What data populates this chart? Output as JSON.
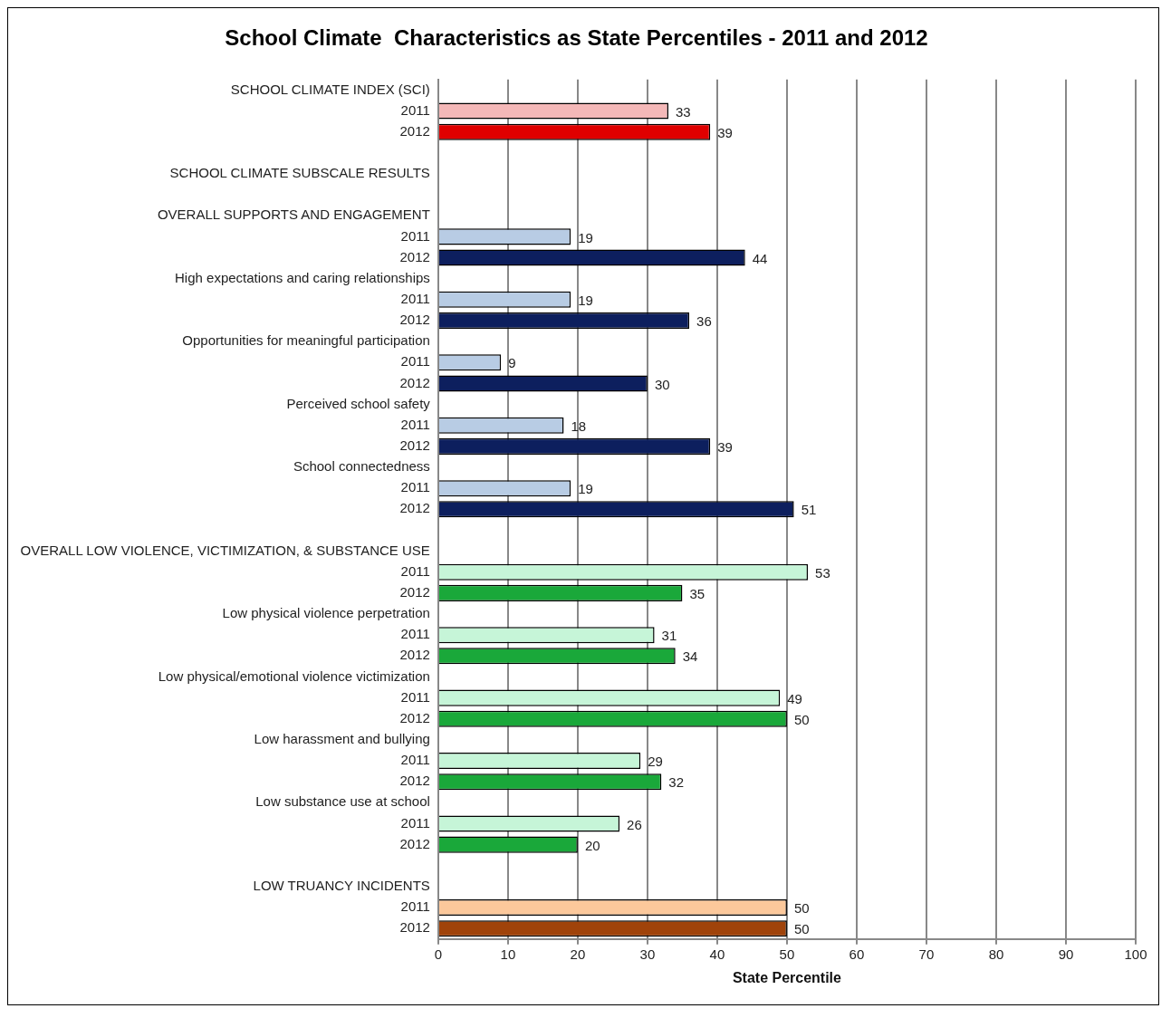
{
  "chart_data": {
    "type": "bar",
    "orientation": "horizontal",
    "title": "School Climate  Characteristics as State Percentiles - 2011 and 2012",
    "xlabel": "State Percentile",
    "categories": [
      "SCHOOL CLIMATE INDEX (SCI)",
      "2011",
      "2012",
      null,
      "SCHOOL CLIMATE SUBSCALE RESULTS",
      null,
      "OVERALL SUPPORTS AND ENGAGEMENT",
      "2011",
      "2012",
      "High expectations and caring relationships",
      "2011",
      "2012",
      "Opportunities for meaningful participation",
      "2011",
      "2012",
      "Perceived school safety",
      "2011",
      "2012",
      "School connectedness",
      "2011",
      "2012",
      null,
      "OVERALL LOW VIOLENCE, VICTIMIZATION, & SUBSTANCE USE",
      "2011",
      "2012",
      "Low physical violence perpetration",
      "2011",
      "2012",
      "Low physical/emotional violence victimization",
      "2011",
      "2012",
      "Low harassment and bullying",
      "2011",
      "2012",
      "Low substance use at school",
      "2011",
      "2012",
      null,
      "LOW TRUANCY INCIDENTS",
      "2011",
      "2012"
    ],
    "values": [
      null,
      33,
      39,
      null,
      null,
      null,
      null,
      19,
      44,
      null,
      19,
      36,
      null,
      9,
      30,
      null,
      18,
      39,
      null,
      19,
      51,
      null,
      null,
      53,
      35,
      null,
      31,
      34,
      null,
      49,
      50,
      null,
      29,
      32,
      null,
      26,
      20,
      null,
      null,
      50,
      50
    ],
    "colors": [
      null,
      "#f4b8b8",
      "#e00000",
      null,
      null,
      null,
      null,
      "#b8cce4",
      "#0d1f5e",
      null,
      "#b8cce4",
      "#0d1f5e",
      null,
      "#b8cce4",
      "#0d1f5e",
      null,
      "#b8cce4",
      "#0d1f5e",
      null,
      "#b8cce4",
      "#0d1f5e",
      null,
      null,
      "#c6f5d8",
      "#1aa83a",
      null,
      "#c6f5d8",
      "#1aa83a",
      null,
      "#c6f5d8",
      "#1aa83a",
      null,
      "#c6f5d8",
      "#1aa83a",
      null,
      "#c6f5d8",
      "#1aa83a",
      null,
      null,
      "#fcc89b",
      "#a0430a"
    ],
    "xlim": [
      0,
      100
    ],
    "xticks": [
      0,
      10,
      20,
      30,
      40,
      50,
      60,
      70,
      80,
      90,
      100
    ],
    "grid": "x",
    "data_labels": true
  }
}
